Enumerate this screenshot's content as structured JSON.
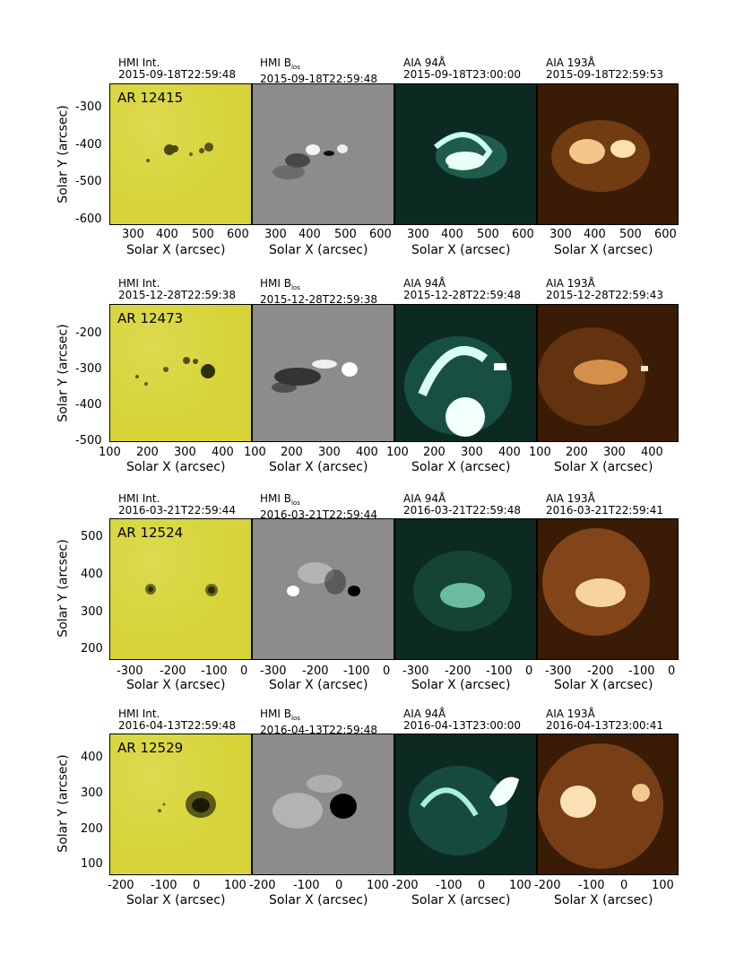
{
  "colors": {
    "hmi_int": "#d6d438",
    "hmi_blos": "#8c8c8c",
    "aia94": "#0c2a22",
    "aia193": "#3a1b06"
  },
  "axis_labels": {
    "x": "Solar X (arcsec)",
    "y": "Solar Y (arcsec)"
  },
  "rows": [
    {
      "ar": "AR 12415",
      "panels": [
        {
          "inst": "HMI Int.",
          "time": "2015-09-18T22:59:48"
        },
        {
          "inst": "HMI B",
          "sub": "los",
          "time": "2015-09-18T22:59:48"
        },
        {
          "inst": "AIA 94Å",
          "time": "2015-09-18T23:00:00"
        },
        {
          "inst": "AIA 193Å",
          "time": "2015-09-18T22:59:53"
        }
      ],
      "yticks": [
        "-300",
        "-400",
        "-500",
        "-600"
      ],
      "xticks": [
        "300",
        "400",
        "500",
        "600"
      ]
    },
    {
      "ar": "AR 12473",
      "panels": [
        {
          "inst": "HMI Int.",
          "time": "2015-12-28T22:59:38"
        },
        {
          "inst": "HMI B",
          "sub": "los",
          "time": "2015-12-28T22:59:38"
        },
        {
          "inst": "AIA 94Å",
          "time": "2015-12-28T22:59:48"
        },
        {
          "inst": "AIA 193Å",
          "time": "2015-12-28T22:59:43"
        }
      ],
      "yticks": [
        "-200",
        "-300",
        "-400",
        "-500"
      ],
      "xticks_first": [
        "100",
        "200",
        "300",
        "400"
      ],
      "xticks": [
        "100",
        "200",
        "300",
        "400"
      ]
    },
    {
      "ar": "AR 12524",
      "panels": [
        {
          "inst": "HMI Int.",
          "time": "2016-03-21T22:59:44"
        },
        {
          "inst": "HMI B",
          "sub": "los",
          "time": "2016-03-21T22:59:44"
        },
        {
          "inst": "AIA 94Å",
          "time": "2016-03-21T22:59:48"
        },
        {
          "inst": "AIA 193Å",
          "time": "2016-03-21T22:59:41"
        }
      ],
      "yticks": [
        "500",
        "400",
        "300",
        "200"
      ],
      "xticks": [
        "-300",
        "-200",
        "-100",
        "0"
      ]
    },
    {
      "ar": "AR 12529",
      "panels": [
        {
          "inst": "HMI Int.",
          "time": "2016-04-13T22:59:48"
        },
        {
          "inst": "HMI B",
          "sub": "los",
          "time": "2016-04-13T22:59:48"
        },
        {
          "inst": "AIA 94Å",
          "time": "2016-04-13T23:00:00"
        },
        {
          "inst": "AIA 193Å",
          "time": "2016-04-13T23:00:41"
        }
      ],
      "yticks": [
        "400",
        "300",
        "200",
        "100"
      ],
      "xticks": [
        "-200",
        "-100",
        "0",
        "100"
      ]
    }
  ]
}
